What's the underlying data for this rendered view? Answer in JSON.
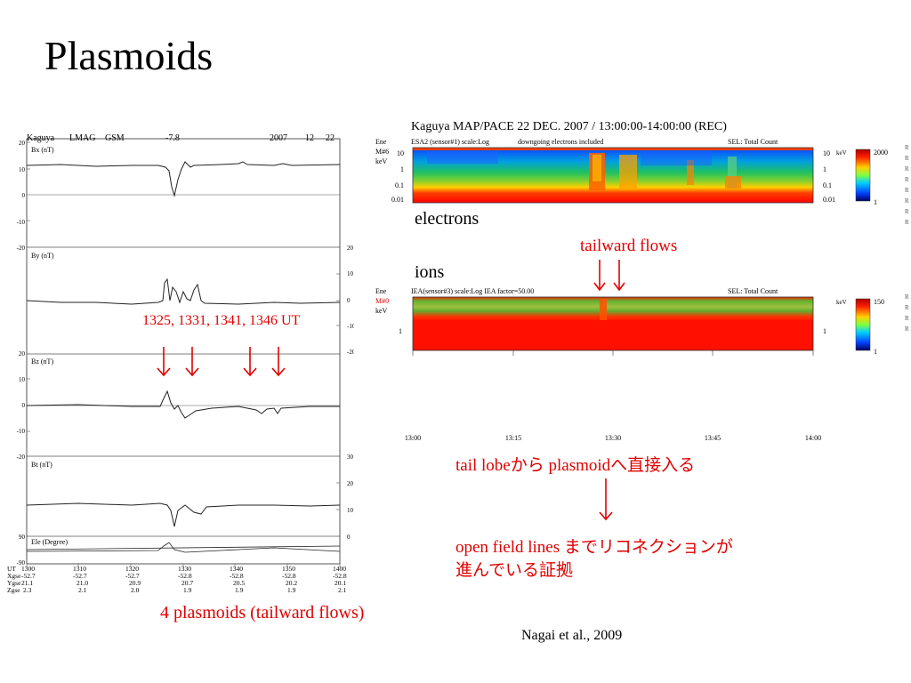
{
  "slide": {
    "title": "Plasmoids",
    "citation": "Nagai et al., 2009"
  },
  "left_plot": {
    "header": {
      "mission": "Kaguya",
      "instrument": "LMAG",
      "frame": "GSM",
      "value": "-7.8",
      "year": "2007",
      "month": "12",
      "day": "22"
    },
    "panels": [
      {
        "label": "Bx (nT)",
        "ticks_left": [
          "20",
          "10",
          "0",
          "-10",
          "-20"
        ],
        "ticks_right": []
      },
      {
        "label": "By (nT)",
        "ticks_left": [],
        "ticks_right": [
          "20",
          "10",
          "0",
          "-10",
          "-20"
        ]
      },
      {
        "label": "Bz (nT)",
        "ticks_left": [
          "20",
          "10",
          "0",
          "-10",
          "-20"
        ],
        "ticks_right": []
      },
      {
        "label": "Bt (nT)",
        "ticks_left": [],
        "ticks_right": [
          "30",
          "20",
          "10",
          "0"
        ]
      },
      {
        "label": "Ele (Degree)",
        "ticks_left": [
          "90",
          "-90"
        ],
        "ticks_right": []
      }
    ],
    "time_row": {
      "label": "UT",
      "values": [
        "1300",
        "1310",
        "1320",
        "1330",
        "1340",
        "1350",
        "1400"
      ]
    },
    "xgse_row": {
      "label": "Xgse",
      "values": [
        "-52.7",
        "-52.7",
        "-52.7",
        "-52.8",
        "-52.8",
        "-52.8",
        "-52.8"
      ]
    },
    "ygse_row": {
      "label": "Ygse",
      "values": [
        "21.1",
        "21.0",
        "20.9",
        "20.7",
        "20.5",
        "20.2",
        "20.1"
      ]
    },
    "zgse_row": {
      "label": "Zgse",
      "values": [
        "2.3",
        "2.1",
        "2.0",
        "1.9",
        "1.9",
        "1.9",
        "2.1"
      ]
    },
    "plasmoid_times": "1325, 1331, 1341, 1346 UT",
    "caption": "4 plasmoids (tailward flows)"
  },
  "right_plot": {
    "title": "Kaguya   MAP/PACE 22 DEC. 2007 / 13:00:00-14:00:00 (REC)",
    "electron_panel": {
      "side_label_1": "Ene",
      "side_label_2": "M#6",
      "side_label_3": "keV",
      "header_left": "ESA2 (sensor#1) scale:Log",
      "header_mid": "downgoing electrons included",
      "header_right": "SEL: Total Count",
      "y_ticks": [
        "10",
        "1",
        "0.1",
        "0.01"
      ],
      "colorbar_unit": "keV",
      "colorbar_max": "2000",
      "colorbar_min": "1",
      "label": "electrons"
    },
    "ion_panel": {
      "side_label_1": "Ene",
      "side_label_2": "M#0",
      "side_label_3": "keV",
      "header_left": "IEA(sensor#3) scale:Log  IEA factor=50.00",
      "header_right": "SEL: Total Count",
      "y_ticks": [
        "1"
      ],
      "colorbar_unit": "keV",
      "colorbar_max": "150",
      "colorbar_min": "1",
      "label": "ions"
    },
    "time_axis": [
      "13:00",
      "13:15",
      "13:30",
      "13:45",
      "14:00"
    ],
    "tailward_flows_label": "tailward flows"
  },
  "annotations": {
    "tail_lobe": "tail lobeから plasmoidへ直接入る",
    "open_field_line1": "open field lines までリコネクションが",
    "open_field_line2": "進んでいる証拠"
  },
  "colors": {
    "accent_red": "#e00000"
  }
}
